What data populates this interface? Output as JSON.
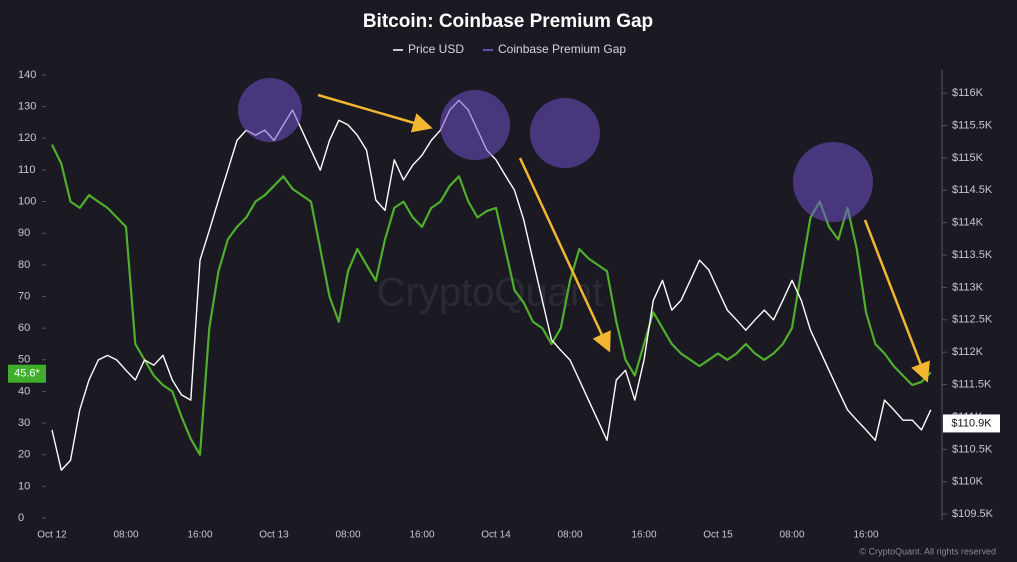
{
  "chart_data": {
    "type": "line",
    "title": "Bitcoin: Coinbase Premium Gap",
    "watermark": "CryptoQuant",
    "copyright": "© CryptoQuant. All rights reserved",
    "categories": [
      "Oct 12",
      null,
      null,
      null,
      null,
      null,
      null,
      null,
      "08:00",
      null,
      null,
      null,
      null,
      null,
      null,
      null,
      "16:00",
      null,
      null,
      null,
      null,
      null,
      null,
      null,
      "Oct 13",
      null,
      null,
      null,
      null,
      null,
      null,
      null,
      "08:00",
      null,
      null,
      null,
      null,
      null,
      null,
      null,
      "16:00",
      null,
      null,
      null,
      null,
      null,
      null,
      null,
      "Oct 14",
      null,
      null,
      null,
      null,
      null,
      null,
      null,
      "08:00",
      null,
      null,
      null,
      null,
      null,
      null,
      null,
      "16:00",
      null,
      null,
      null,
      null,
      null,
      null,
      null,
      "Oct 15",
      null,
      null,
      null,
      null,
      null,
      null,
      null,
      "08:00",
      null,
      null,
      null,
      null,
      null,
      null,
      null,
      "16:00",
      null,
      null,
      null,
      null,
      null,
      null,
      null
    ],
    "series": [
      {
        "name": "Coinbase Premium Gap",
        "color": "#4fae2c",
        "legend_color": "#7b61d9",
        "axis": "y",
        "values": [
          118,
          112,
          100,
          98,
          102,
          100,
          98,
          95,
          92,
          55,
          50,
          45,
          42,
          40,
          32,
          25,
          20,
          60,
          78,
          88,
          92,
          95,
          100,
          102,
          105,
          108,
          104,
          102,
          100,
          85,
          70,
          62,
          78,
          85,
          80,
          75,
          88,
          98,
          100,
          95,
          92,
          98,
          100,
          105,
          108,
          100,
          95,
          97,
          98,
          85,
          72,
          68,
          62,
          60,
          55,
          60,
          75,
          85,
          82,
          80,
          78,
          62,
          50,
          45,
          55,
          65,
          60,
          55,
          52,
          50,
          48,
          50,
          52,
          50,
          52,
          55,
          52,
          50,
          52,
          55,
          60,
          78,
          95,
          100,
          92,
          88,
          98,
          85,
          65,
          55,
          52,
          48,
          45,
          42,
          43,
          46
        ]
      },
      {
        "name": "Price USD",
        "color": "#ffffff",
        "legend_color": "#ffffff",
        "axis": "y2",
        "values": [
          110800,
          110180,
          110330,
          111110,
          111570,
          111880,
          111950,
          111880,
          111720,
          111570,
          111880,
          111800,
          111950,
          111570,
          111340,
          111260,
          113420,
          113880,
          114350,
          114810,
          115270,
          115430,
          115350,
          115430,
          115270,
          115510,
          115740,
          115430,
          115120,
          114810,
          115270,
          115580,
          115510,
          115350,
          115120,
          114350,
          114190,
          114970,
          114660,
          114890,
          115040,
          115270,
          115430,
          115740,
          115890,
          115740,
          115430,
          115120,
          114970,
          114730,
          114500,
          114040,
          113420,
          112800,
          112190,
          112030,
          111880,
          111570,
          111260,
          110950,
          110640,
          111570,
          111720,
          111260,
          111880,
          112800,
          113110,
          112650,
          112800,
          113110,
          113420,
          113270,
          112960,
          112650,
          112500,
          112340,
          112500,
          112650,
          112500,
          112800,
          113110,
          112800,
          112340,
          112030,
          111720,
          111410,
          111110,
          110950,
          110800,
          110640,
          111260,
          111110,
          110950,
          110950,
          110800,
          111110
        ]
      }
    ],
    "ylim": [
      0,
      140
    ],
    "yticks": [
      0,
      10,
      20,
      30,
      40,
      50,
      60,
      70,
      80,
      90,
      100,
      110,
      120,
      130,
      140
    ],
    "y2lim": [
      109440,
      116280
    ],
    "y2ticks": [
      {
        "value": 109500,
        "label": "$109.5K"
      },
      {
        "value": 110000,
        "label": "$110K"
      },
      {
        "value": 110500,
        "label": "$110.5K"
      },
      {
        "value": 111000,
        "label": "$111K"
      },
      {
        "value": 111500,
        "label": "$111.5K"
      },
      {
        "value": 112000,
        "label": "$112K"
      },
      {
        "value": 112500,
        "label": "$112.5K"
      },
      {
        "value": 113000,
        "label": "$113K"
      },
      {
        "value": 113500,
        "label": "$113.5K"
      },
      {
        "value": 114000,
        "label": "$114K"
      },
      {
        "value": 114500,
        "label": "$114.5K"
      },
      {
        "value": 115000,
        "label": "$115K"
      },
      {
        "value": 115500,
        "label": "$115.5K"
      },
      {
        "value": 116000,
        "label": "$116K"
      }
    ],
    "annotations": [
      {
        "value": 45.6,
        "label": "45.6*",
        "axis": "y",
        "color": "#3fae2a"
      },
      {
        "value": 110900,
        "label": "$110.9K",
        "axis": "y2",
        "color": "#ffffff"
      }
    ]
  }
}
